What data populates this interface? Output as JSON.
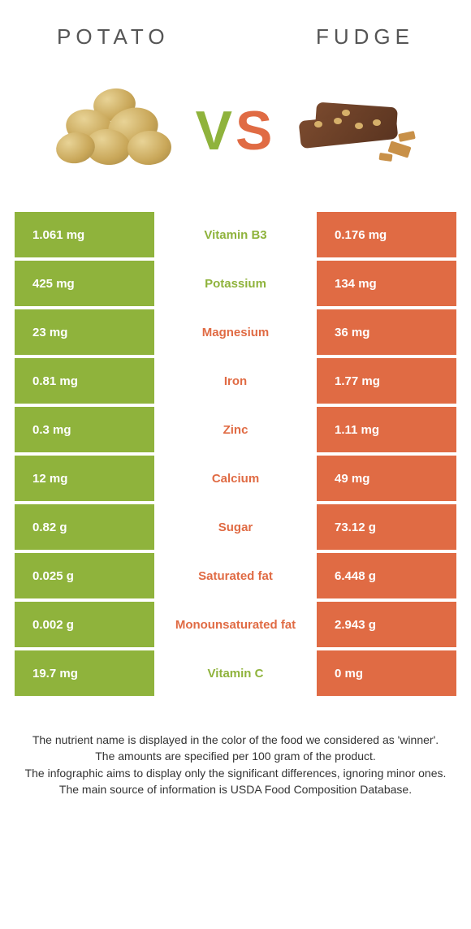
{
  "left_food": "POTATO",
  "right_food": "FUDGE",
  "vs_v": "V",
  "vs_s": "S",
  "color_left": "#8fb33c",
  "color_right": "#e06b44",
  "rows": [
    {
      "left": "1.061 mg",
      "label": "Vitamin B3",
      "right": "0.176 mg",
      "winner": "left"
    },
    {
      "left": "425 mg",
      "label": "Potassium",
      "right": "134 mg",
      "winner": "left"
    },
    {
      "left": "23 mg",
      "label": "Magnesium",
      "right": "36 mg",
      "winner": "right"
    },
    {
      "left": "0.81 mg",
      "label": "Iron",
      "right": "1.77 mg",
      "winner": "right"
    },
    {
      "left": "0.3 mg",
      "label": "Zinc",
      "right": "1.11 mg",
      "winner": "right"
    },
    {
      "left": "12 mg",
      "label": "Calcium",
      "right": "49 mg",
      "winner": "right"
    },
    {
      "left": "0.82 g",
      "label": "Sugar",
      "right": "73.12 g",
      "winner": "right"
    },
    {
      "left": "0.025 g",
      "label": "Saturated fat",
      "right": "6.448 g",
      "winner": "right"
    },
    {
      "left": "0.002 g",
      "label": "Monounsaturated fat",
      "right": "2.943 g",
      "winner": "right"
    },
    {
      "left": "19.7 mg",
      "label": "Vitamin C",
      "right": "0 mg",
      "winner": "left"
    }
  ],
  "footer_lines": [
    "The nutrient name is displayed in the color of the food we considered as 'winner'.",
    "The amounts are specified per 100 gram of the product.",
    "The infographic aims to display only the significant differences, ignoring minor ones.",
    "The main source of information is USDA Food Composition Database."
  ]
}
